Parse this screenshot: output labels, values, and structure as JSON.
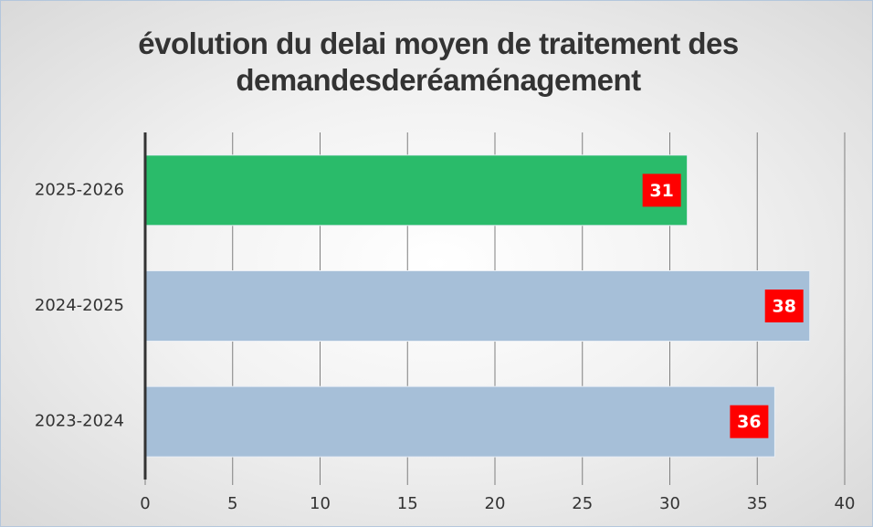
{
  "chart_data": {
    "type": "hbar",
    "title": "évolution du delai moyen de traitement des demandesderéaménagement",
    "categories": [
      "2025-2026",
      "2024-2025",
      "2023-2024"
    ],
    "values": [
      31,
      38,
      36
    ],
    "colors": [
      "#2abb6a",
      "#a6bfd8",
      "#a6bfd8"
    ],
    "label_color": "#ff0000",
    "xlim": [
      0,
      40
    ],
    "xticks": [
      0,
      5,
      10,
      15,
      20,
      25,
      30,
      35,
      40
    ],
    "grid": true
  }
}
